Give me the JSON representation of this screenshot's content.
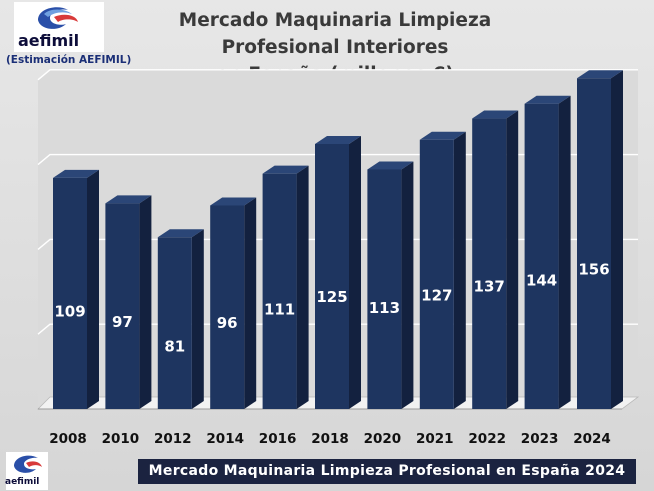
{
  "header": {
    "logo_text": "aefimil",
    "subnote": "(Estimación AEFIMIL)"
  },
  "chart_data": {
    "type": "bar",
    "title": "Mercado Maquinaria Limpieza Profesional Interiores en España (millones €)",
    "title_lines": [
      "Mercado Maquinaria Limpieza Profesional Interiores",
      "en España (millones €)"
    ],
    "categories": [
      "2008",
      "2010",
      "2012",
      "2014",
      "2016",
      "2018",
      "2020",
      "2021",
      "2022",
      "2023",
      "2024"
    ],
    "values": [
      109,
      97,
      81,
      96,
      111,
      125,
      113,
      127,
      137,
      144,
      156
    ],
    "xlabel": "",
    "ylabel": "",
    "ylim": [
      0,
      160
    ],
    "grid": true,
    "legend": "none",
    "bar_color": "#1e3560"
  },
  "footer": {
    "banner": "Mercado Maquinaria Limpieza Profesional en España 2024",
    "logo_text": "aefimil"
  }
}
